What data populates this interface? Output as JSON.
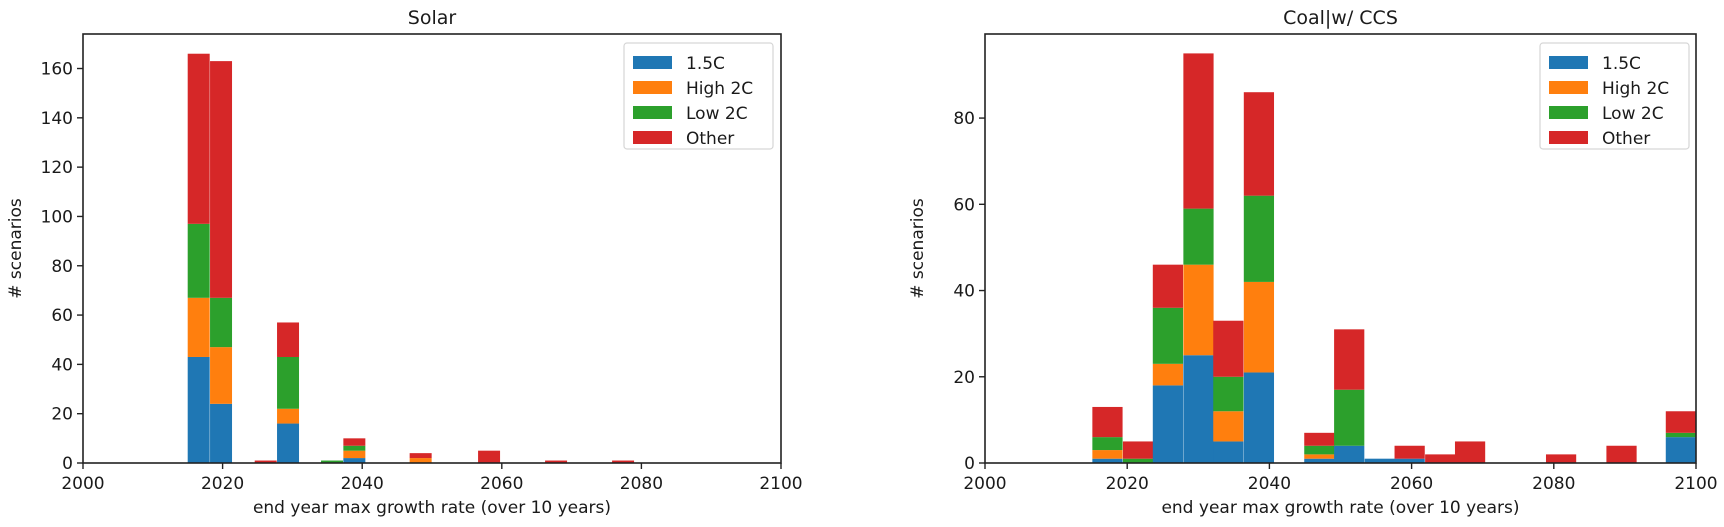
{
  "colors": {
    "1.5C": "#1f77b4",
    "High 2C": "#ff7f0e",
    "Low 2C": "#2ca02c",
    "Other": "#d62728",
    "axis": "#222222"
  },
  "chart_data": [
    {
      "type": "bar",
      "stacked": true,
      "title": "Solar",
      "xlabel": "end year max growth rate (over 10 years)",
      "ylabel": "# scenarios",
      "xlim": [
        2000,
        2100
      ],
      "ylim": [
        0,
        174
      ],
      "xticks": [
        2000,
        2020,
        2040,
        2060,
        2080,
        2100
      ],
      "yticks": [
        0,
        20,
        40,
        60,
        80,
        100,
        120,
        140,
        160
      ],
      "legend": [
        "1.5C",
        "High 2C",
        "Low 2C",
        "Other"
      ],
      "legend_position": "upper right",
      "grid": false,
      "bin_width": 3.15,
      "bins": [
        {
          "start": 2015.0,
          "1.5C": 43,
          "High 2C": 24,
          "Low 2C": 30,
          "Other": 69
        },
        {
          "start": 2018.2,
          "1.5C": 24,
          "High 2C": 23,
          "Low 2C": 20,
          "Other": 96
        },
        {
          "start": 2024.6,
          "1.5C": 0,
          "High 2C": 0,
          "Low 2C": 0,
          "Other": 1
        },
        {
          "start": 2027.8,
          "1.5C": 16,
          "High 2C": 6,
          "Low 2C": 21,
          "Other": 14
        },
        {
          "start": 2034.1,
          "1.5C": 0,
          "High 2C": 0,
          "Low 2C": 1,
          "Other": 0
        },
        {
          "start": 2037.3,
          "1.5C": 2,
          "High 2C": 3,
          "Low 2C": 2,
          "Other": 3
        },
        {
          "start": 2046.8,
          "1.5C": 0,
          "High 2C": 2,
          "Low 2C": 0,
          "Other": 2
        },
        {
          "start": 2056.6,
          "1.5C": 0,
          "High 2C": 0,
          "Low 2C": 0,
          "Other": 5
        },
        {
          "start": 2066.2,
          "1.5C": 0,
          "High 2C": 0,
          "Low 2C": 0,
          "Other": 1
        },
        {
          "start": 2075.8,
          "1.5C": 0,
          "High 2C": 0,
          "Low 2C": 0,
          "Other": 1
        }
      ]
    },
    {
      "type": "bar",
      "stacked": true,
      "title": "Coal|w/ CCS",
      "xlabel": "end year max growth rate (over 10 years)",
      "ylabel": "# scenarios",
      "xlim": [
        2000,
        2100
      ],
      "ylim": [
        0,
        99.5
      ],
      "xticks": [
        2000,
        2020,
        2040,
        2060,
        2080,
        2100
      ],
      "yticks": [
        0,
        20,
        40,
        60,
        80
      ],
      "legend": [
        "1.5C",
        "High 2C",
        "Low 2C",
        "Other"
      ],
      "legend_position": "upper right",
      "grid": false,
      "bin_width": 4.25,
      "bins": [
        {
          "start": 2015.1,
          "1.5C": 1,
          "High 2C": 2,
          "Low 2C": 3,
          "Other": 7
        },
        {
          "start": 2019.4,
          "1.5C": 0,
          "High 2C": 0,
          "Low 2C": 1,
          "Other": 4
        },
        {
          "start": 2023.6,
          "1.5C": 18,
          "High 2C": 5,
          "Low 2C": 13,
          "Other": 10
        },
        {
          "start": 2027.9,
          "1.5C": 25,
          "High 2C": 21,
          "Low 2C": 13,
          "Other": 36
        },
        {
          "start": 2032.1,
          "1.5C": 5,
          "High 2C": 7,
          "Low 2C": 8,
          "Other": 13
        },
        {
          "start": 2036.4,
          "1.5C": 21,
          "High 2C": 21,
          "Low 2C": 20,
          "Other": 24
        },
        {
          "start": 2044.9,
          "1.5C": 1,
          "High 2C": 1,
          "Low 2C": 2,
          "Other": 3
        },
        {
          "start": 2049.1,
          "1.5C": 4,
          "High 2C": 0,
          "Low 2C": 13,
          "Other": 14
        },
        {
          "start": 2053.4,
          "1.5C": 1,
          "High 2C": 0,
          "Low 2C": 0,
          "Other": 0
        },
        {
          "start": 2057.6,
          "1.5C": 1,
          "High 2C": 0,
          "Low 2C": 0,
          "Other": 3
        },
        {
          "start": 2061.9,
          "1.5C": 0,
          "High 2C": 0,
          "Low 2C": 0,
          "Other": 2
        },
        {
          "start": 2066.1,
          "1.5C": 0,
          "High 2C": 0,
          "Low 2C": 0,
          "Other": 5
        },
        {
          "start": 2078.9,
          "1.5C": 0,
          "High 2C": 0,
          "Low 2C": 0,
          "Other": 2
        },
        {
          "start": 2087.4,
          "1.5C": 0,
          "High 2C": 0,
          "Low 2C": 0,
          "Other": 4
        },
        {
          "start": 2095.75,
          "1.5C": 6,
          "High 2C": 0,
          "Low 2C": 1,
          "Other": 5
        }
      ]
    }
  ]
}
